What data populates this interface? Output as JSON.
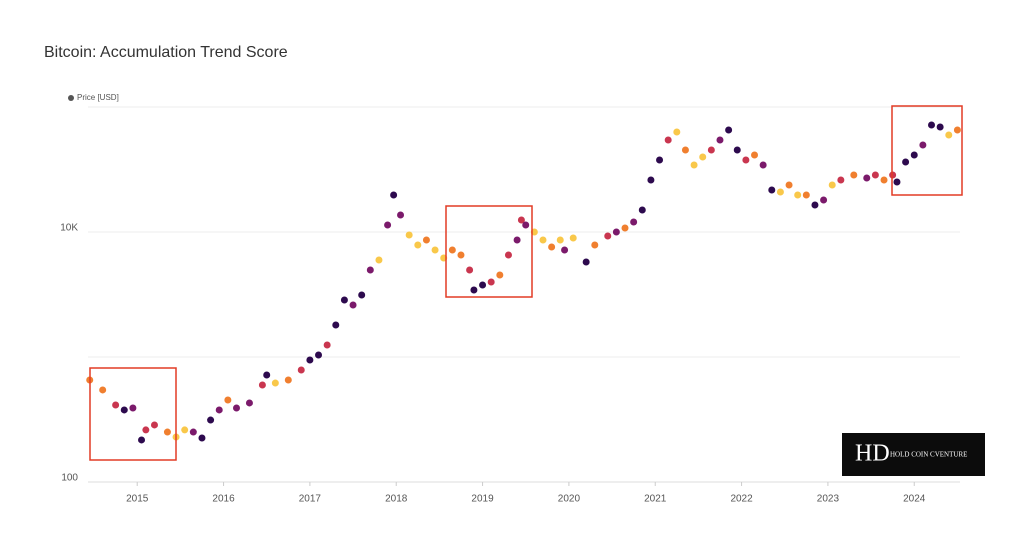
{
  "chart_data": {
    "type": "scatter",
    "title": "Bitcoin: Accumulation Trend Score",
    "log_y": true,
    "grid": true,
    "legend": "top-left",
    "legend_color": "#555555",
    "watermark": "HOLD COIN CVENTURE",
    "xlim": [
      2014.43,
      2024.53
    ],
    "xticks": [
      2015,
      2016,
      2017,
      2018,
      2019,
      2020,
      2021,
      2022,
      2023,
      2024
    ],
    "ylim": [
      100,
      100000
    ],
    "yticks": [
      100,
      {
        "value": 10000,
        "label": "10K"
      }
    ],
    "ygrid": [
      1000,
      100000
    ],
    "x": [
      2014.45,
      2014.6,
      2014.75,
      2014.85,
      2014.95,
      2015.05,
      2015.1,
      2015.2,
      2015.35,
      2015.45,
      2015.55,
      2015.65,
      2015.75,
      2015.85,
      2015.95,
      2016.05,
      2016.15,
      2016.3,
      2016.45,
      2016.5,
      2016.6,
      2016.75,
      2016.9,
      2017.0,
      2017.1,
      2017.2,
      2017.3,
      2017.4,
      2017.5,
      2017.6,
      2017.7,
      2017.8,
      2017.9,
      2017.97,
      2018.05,
      2018.15,
      2018.25,
      2018.35,
      2018.45,
      2018.55,
      2018.65,
      2018.75,
      2018.85,
      2018.9,
      2019.0,
      2019.1,
      2019.2,
      2019.3,
      2019.4,
      2019.45,
      2019.5,
      2019.6,
      2019.7,
      2019.8,
      2019.9,
      2019.95,
      2020.05,
      2020.2,
      2020.3,
      2020.45,
      2020.55,
      2020.65,
      2020.75,
      2020.85,
      2020.95,
      2021.05,
      2021.15,
      2021.25,
      2021.35,
      2021.45,
      2021.55,
      2021.65,
      2021.75,
      2021.85,
      2021.95,
      2022.05,
      2022.15,
      2022.25,
      2022.35,
      2022.45,
      2022.55,
      2022.65,
      2022.75,
      2022.85,
      2022.95,
      2023.05,
      2023.15,
      2023.3,
      2023.45,
      2023.55,
      2023.65,
      2023.75,
      2023.8,
      2023.9,
      2024.0,
      2024.1,
      2024.2,
      2024.3,
      2024.4,
      2024.5
    ],
    "series": [
      {
        "name": "Price [USD]",
        "values": [
          655,
          545,
          413,
          377,
          391,
          217,
          261,
          286,
          251,
          229,
          261,
          251,
          225,
          313,
          377,
          453,
          391,
          429,
          597,
          718,
          619,
          655,
          787,
          946,
          1038,
          1247,
          1803,
          2858,
          2606,
          3133,
          4966,
          5970,
          11376,
          19770,
          13677,
          9462,
          7870,
          8630,
          7178,
          6194,
          7178,
          6546,
          4966,
          3436,
          3767,
          3981,
          4529,
          6546,
          8630,
          12474,
          11376,
          10000,
          8630,
          7586,
          8630,
          7178,
          8954,
          5754,
          7870,
          9290,
          10000,
          10765,
          12023,
          15000,
          26062,
          37670,
          54450,
          63096,
          45290,
          34356,
          39811,
          45290,
          54450,
          65464,
          45290,
          37670,
          41305,
          34356,
          21677,
          20893,
          23768,
          19770,
          19770,
          16444,
          18030,
          23768,
          26062,
          28576,
          27040,
          28576,
          26062,
          28576,
          25119,
          36308,
          41305,
          49659,
          71779,
          69183,
          59704,
          65464
        ],
        "colors": [
          "#f07f2f",
          "#f07f2f",
          "#c9364f",
          "#2d0a4e",
          "#7b1a6b",
          "#2d0a4e",
          "#c9364f",
          "#c9364f",
          "#f07f2f",
          "#f9c84a",
          "#f9c84a",
          "#7b1a6b",
          "#2d0a4e",
          "#2d0a4e",
          "#7b1a6b",
          "#f07f2f",
          "#7b1a6b",
          "#7b1a6b",
          "#c9364f",
          "#2d0a4e",
          "#f9c84a",
          "#f07f2f",
          "#c9364f",
          "#2d0a4e",
          "#2d0a4e",
          "#c9364f",
          "#2d0a4e",
          "#2d0a4e",
          "#7b1a6b",
          "#2d0a4e",
          "#7b1a6b",
          "#f9c84a",
          "#7b1a6b",
          "#2d0a4e",
          "#7b1a6b",
          "#f9c84a",
          "#f9c84a",
          "#f07f2f",
          "#f9c84a",
          "#f9c84a",
          "#f07f2f",
          "#f07f2f",
          "#c9364f",
          "#2d0a4e",
          "#2d0a4e",
          "#c9364f",
          "#f07f2f",
          "#c9364f",
          "#7b1a6b",
          "#c9364f",
          "#7b1a6b",
          "#f9c84a",
          "#f9c84a",
          "#f07f2f",
          "#f9c84a",
          "#7b1a6b",
          "#f9c84a",
          "#2d0a4e",
          "#f07f2f",
          "#c9364f",
          "#7b1a6b",
          "#f07f2f",
          "#7b1a6b",
          "#2d0a4e",
          "#2d0a4e",
          "#2d0a4e",
          "#c9364f",
          "#f9c84a",
          "#f07f2f",
          "#f9c84a",
          "#f9c84a",
          "#c9364f",
          "#7b1a6b",
          "#2d0a4e",
          "#2d0a4e",
          "#c9364f",
          "#f07f2f",
          "#7b1a6b",
          "#2d0a4e",
          "#f9c84a",
          "#f07f2f",
          "#f9c84a",
          "#f07f2f",
          "#2d0a4e",
          "#7b1a6b",
          "#f9c84a",
          "#c9364f",
          "#f07f2f",
          "#7b1a6b",
          "#c9364f",
          "#f07f2f",
          "#c9364f",
          "#2d0a4e",
          "#2d0a4e",
          "#2d0a4e",
          "#7b1a6b",
          "#2d0a4e",
          "#2d0a4e",
          "#f9c84a",
          "#f07f2f"
        ]
      }
    ]
  }
}
